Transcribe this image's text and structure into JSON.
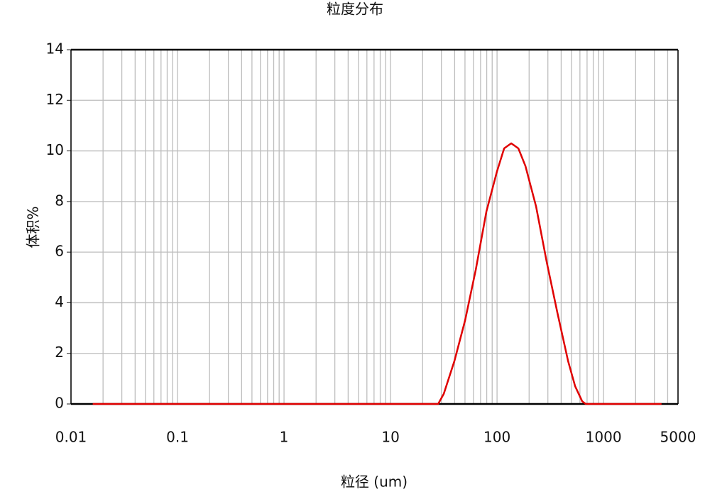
{
  "chart_data": {
    "type": "line",
    "title": "粒度分布",
    "x_label": "粒径 (um)",
    "y_label": "体积%",
    "x_scale": "log",
    "grid": true,
    "minor_grid": true,
    "xlim": [
      0.01,
      5000
    ],
    "xticks": [
      0.01,
      0.1,
      1,
      10,
      100,
      1000,
      5000
    ],
    "ylim": [
      0,
      14
    ],
    "yticks": [
      0,
      2,
      4,
      6,
      8,
      10,
      12,
      14
    ],
    "x": [
      0.016,
      28,
      31.6,
      39.8,
      50.1,
      63.1,
      79.4,
      100,
      116.6,
      135.9,
      158.5,
      184.8,
      232.6,
      292.9,
      368.8,
      464.2,
      541,
      631,
      681,
      3500
    ],
    "series": [
      {
        "name": "体积%",
        "color": "#e00000",
        "values": [
          0,
          0,
          0.4,
          1.7,
          3.3,
          5.3,
          7.6,
          9.2,
          10.1,
          10.3,
          10.1,
          9.4,
          7.8,
          5.6,
          3.6,
          1.7,
          0.7,
          0.1,
          0,
          0
        ]
      }
    ]
  }
}
